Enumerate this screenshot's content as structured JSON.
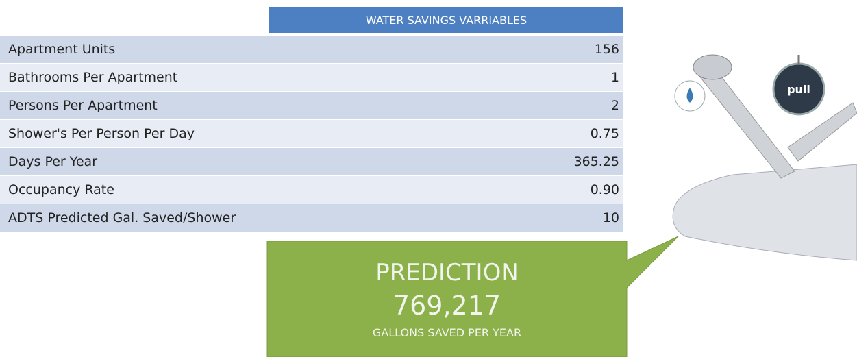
{
  "table": {
    "header": "WATER SAVINGS VARRIABLES",
    "rows": [
      [
        "Apartment Units",
        "156"
      ],
      [
        "Bathrooms Per Apartment",
        "1"
      ],
      [
        "Persons Per Apartment",
        "2"
      ],
      [
        "Shower's Per Person Per Day",
        "0.75"
      ],
      [
        "Days Per Year",
        "365.25"
      ],
      [
        "Occupancy Rate",
        "0.90"
      ],
      [
        "ADTS Predicted Gal. Saved/Shower",
        "10"
      ]
    ]
  },
  "callout": {
    "title": "PREDICTION",
    "value": "769,217",
    "caption": "GALLONS SAVED PER YEAR"
  },
  "product_badge": "pull"
}
